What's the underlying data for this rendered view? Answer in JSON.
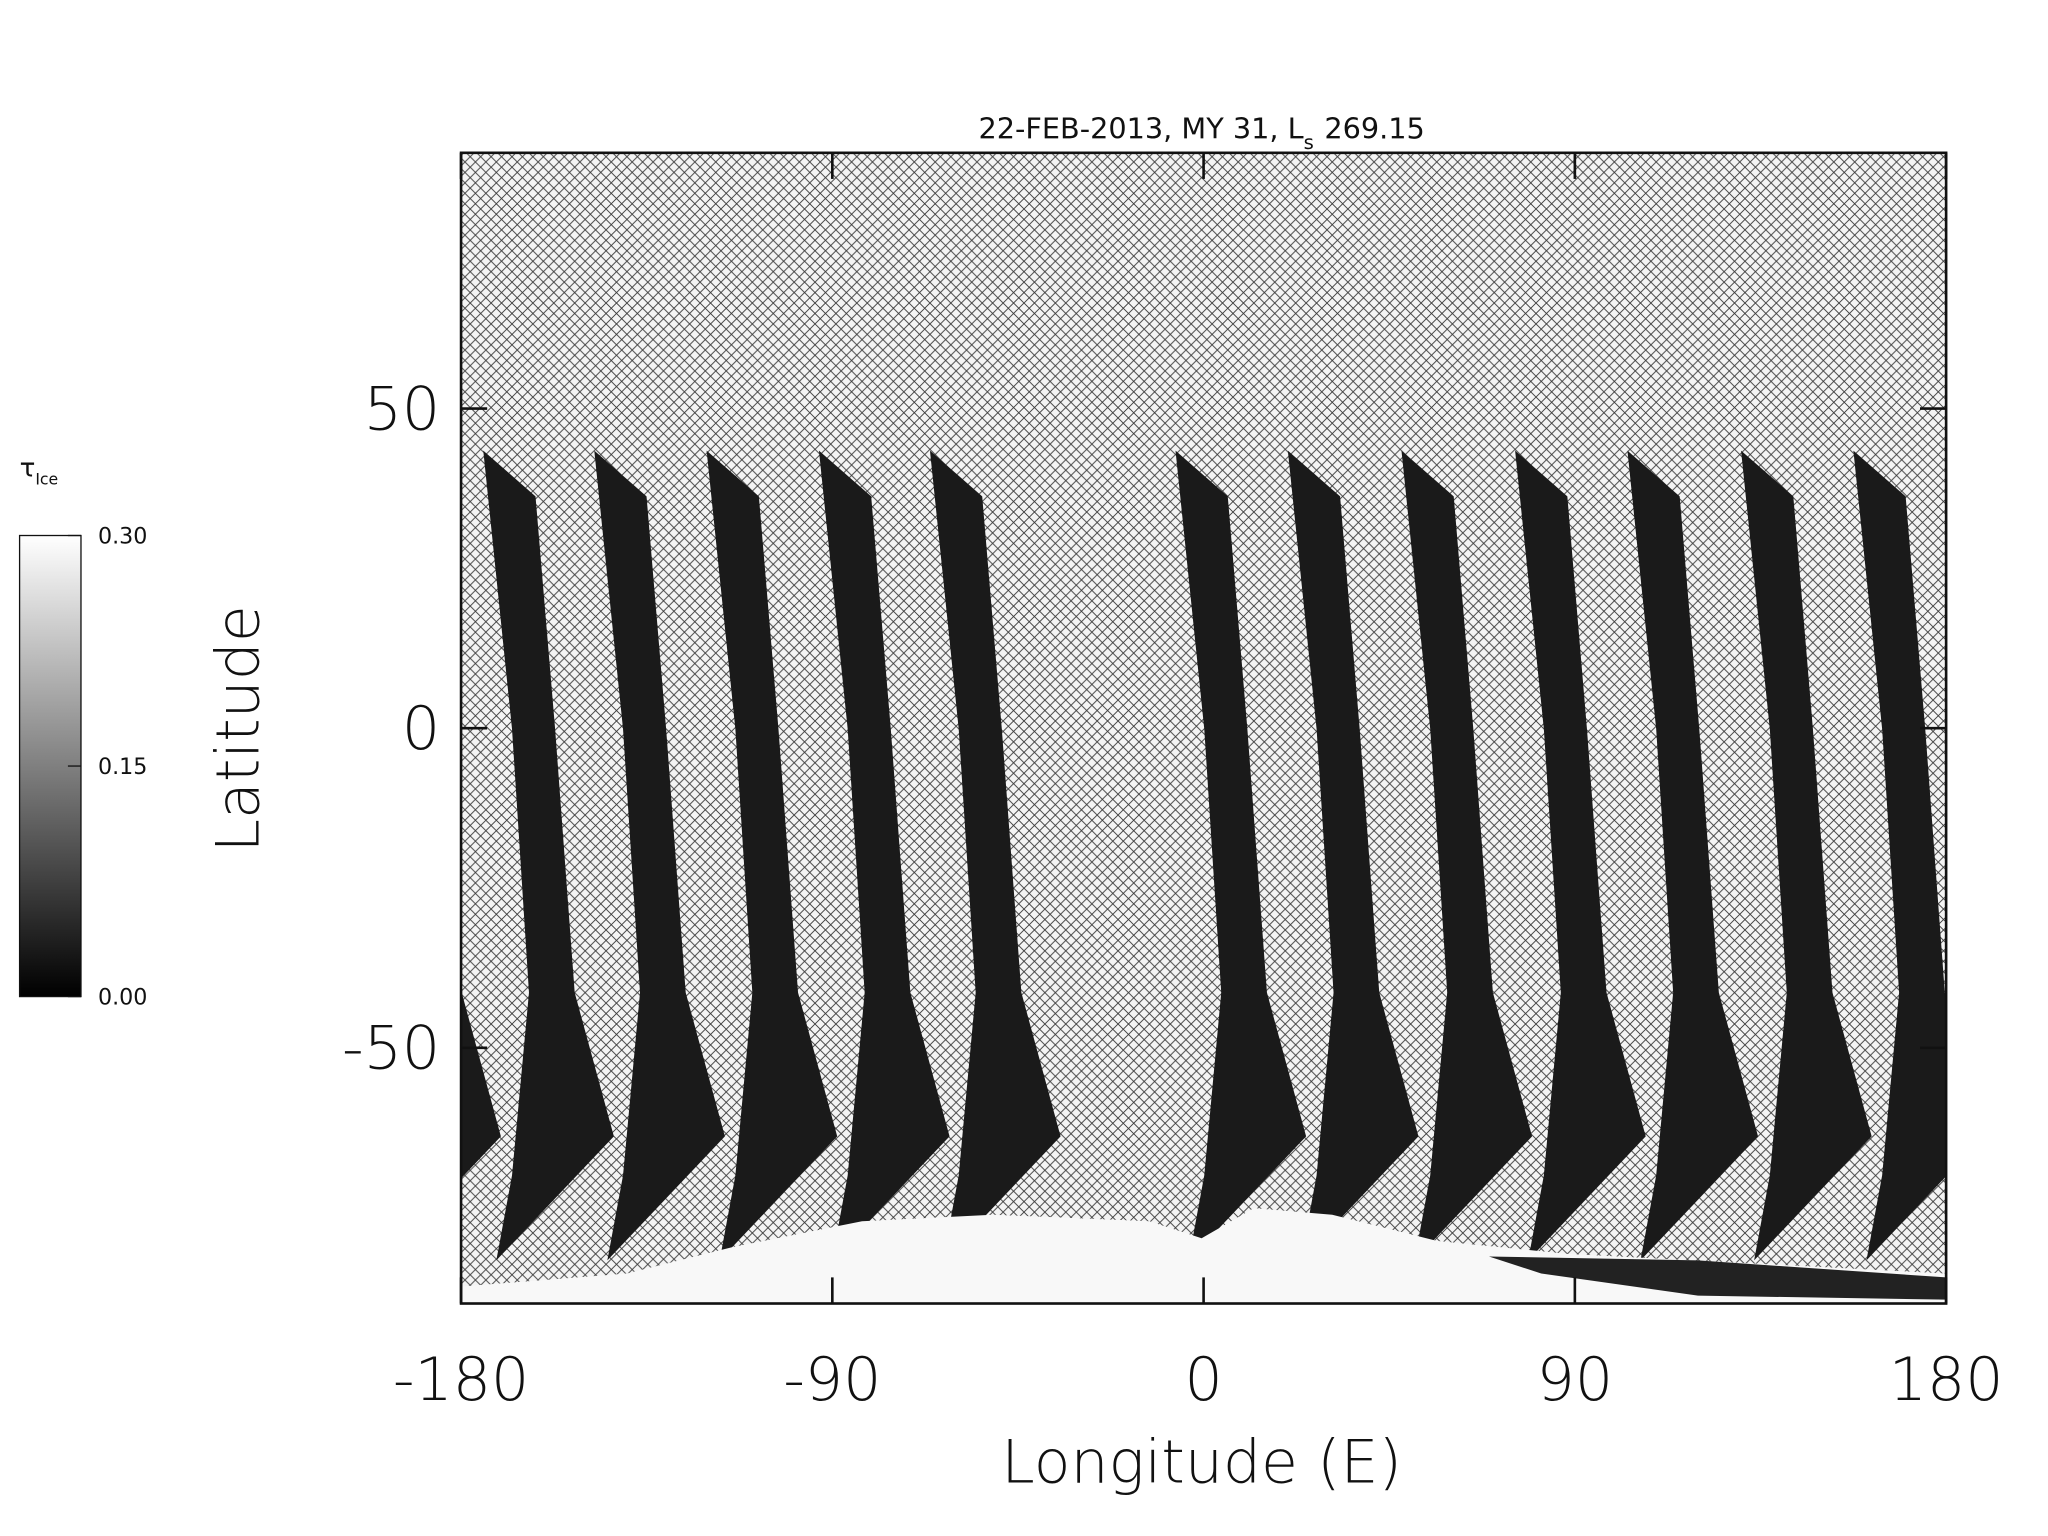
{
  "chart_data": {
    "type": "map",
    "title": {
      "text": "22-FEB-2013, MY 31,  L",
      "subscript": "s",
      "suffix": "269.15"
    },
    "xlabel": "Longitude (E)",
    "ylabel": "Latitude",
    "xlim": [
      -180,
      180
    ],
    "xticks": [
      -180,
      -90,
      0,
      90,
      180
    ],
    "ylim": [
      -90,
      90
    ],
    "yticks": [
      -50,
      0,
      50
    ],
    "grid": false,
    "colorbar": {
      "label": "τ",
      "label_subscript": "Ice",
      "lim": [
        0,
        0.3
      ],
      "ticks": [
        {
          "value": 0,
          "label": "0.00"
        },
        {
          "value": 0.15,
          "label": "0.15"
        },
        {
          "value": 0.3,
          "label": "0.30"
        }
      ],
      "colors": [
        "#000000",
        "#ffffff"
      ]
    }
  }
}
